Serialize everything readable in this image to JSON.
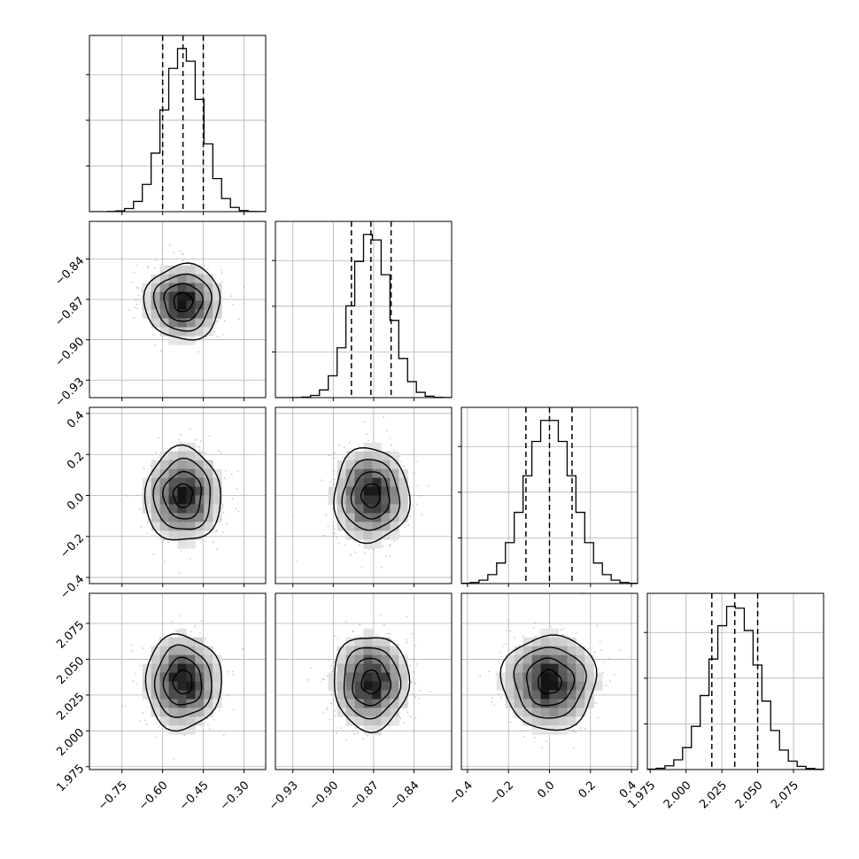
{
  "chart_data": {
    "type": "corner",
    "grid": true,
    "style": {
      "hist_color": "#000000",
      "contour_color": "#000000",
      "scatter_color": "#9a9a9a",
      "grid_color": "#b0b0b0",
      "density_colormap": "greys"
    },
    "parameters": [
      {
        "range": [
          -0.87,
          -0.22
        ],
        "ticks": [
          -0.75,
          -0.6,
          -0.45,
          -0.3
        ],
        "tick_labels": [
          "−0.75",
          "−0.60",
          "−0.45",
          "−0.30"
        ],
        "mean": -0.525,
        "sigma": 0.07,
        "quantiles": [
          -0.6,
          -0.525,
          -0.45
        ]
      },
      {
        "range": [
          -0.943,
          -0.812
        ],
        "ticks": [
          -0.93,
          -0.9,
          -0.87,
          -0.84
        ],
        "tick_labels": [
          "−0.93",
          "−0.90",
          "−0.87",
          "−0.84"
        ],
        "mean": -0.872,
        "sigma": 0.014,
        "quantiles": [
          -0.8865,
          -0.872,
          -0.857
        ]
      },
      {
        "range": [
          -0.43,
          0.43
        ],
        "ticks": [
          -0.4,
          -0.2,
          0.0,
          0.2,
          0.4
        ],
        "tick_labels": [
          "−0.4",
          "−0.2",
          "0.0",
          "0.2",
          "0.4"
        ],
        "mean": 0.0,
        "sigma": 0.115,
        "quantiles": [
          -0.115,
          0.0,
          0.11
        ]
      },
      {
        "range": [
          1.973,
          2.096
        ],
        "ticks": [
          1.975,
          2.0,
          2.025,
          2.05,
          2.075
        ],
        "tick_labels": [
          "1.975",
          "2.000",
          "2.025",
          "2.050",
          "2.075"
        ],
        "mean": 2.034,
        "sigma": 0.0165,
        "quantiles": [
          2.018,
          2.034,
          2.05
        ]
      }
    ],
    "contour_levels_sigma": [
      0.5,
      1.0,
      1.5,
      2.0
    ]
  }
}
